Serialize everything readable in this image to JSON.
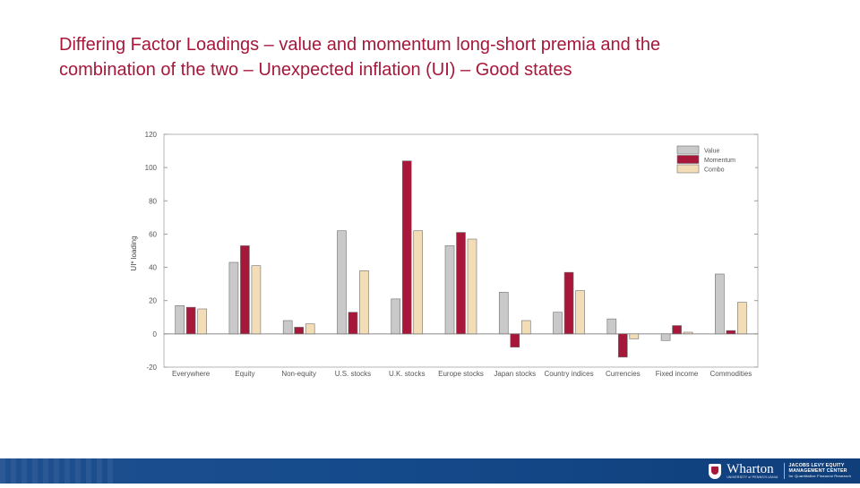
{
  "slide": {
    "title_line1": "Differing Factor Loadings – value and momentum long-short premia and the",
    "title_line2": "combination of the two – Unexpected inflation (UI) – Good states"
  },
  "chart_data": {
    "type": "bar",
    "ylabel": "UI* loading",
    "ylim": [
      -20,
      120
    ],
    "yticks": [
      -20,
      0,
      20,
      40,
      60,
      80,
      100,
      120
    ],
    "categories": [
      "Everywhere",
      "Equity",
      "Non-equity",
      "U.S. stocks",
      "U.K. stocks",
      "Europe stocks",
      "Japan stocks",
      "Country indices",
      "Currencies",
      "Fixed income",
      "Commodities"
    ],
    "series": [
      {
        "name": "Value",
        "color": "#c9c9c9",
        "values": [
          17,
          43,
          8,
          62,
          21,
          53,
          25,
          13,
          9,
          -4,
          36
        ]
      },
      {
        "name": "Momentum",
        "color": "#a6173a",
        "values": [
          16,
          53,
          4,
          13,
          104,
          61,
          -8,
          37,
          -14,
          5,
          2
        ]
      },
      {
        "name": "Combo",
        "color": "#f3ddb7",
        "values": [
          15,
          41,
          6,
          38,
          62,
          57,
          8,
          26,
          -3,
          1,
          19
        ]
      }
    ],
    "legend_position": "top-right",
    "grid": false
  },
  "footer": {
    "brand": "Wharton",
    "brand_sub": "UNIVERSITY of PENNSYLVANIA",
    "center_line1": "JACOBS LEVY EQUITY",
    "center_line2": "MANAGEMENT CENTER",
    "center_line3": "for Quantitative Financial Research"
  }
}
